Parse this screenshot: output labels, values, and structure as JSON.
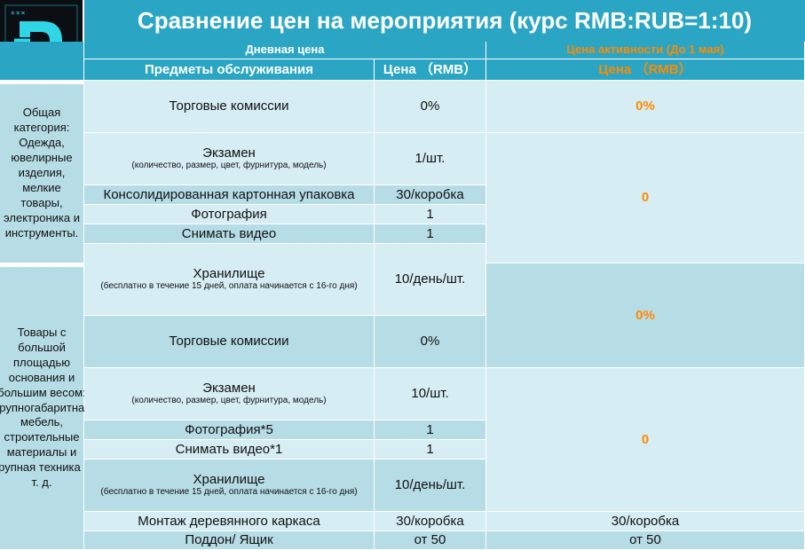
{
  "title": "Сравнение цен на мероприятия (курс RMB:RUB=1:10)",
  "logo": {
    "dots": "×××",
    "letter": "D",
    "accent": "#2fd6e6"
  },
  "colors": {
    "header": "#2aa6c4",
    "light": "#d6edf3",
    "dark": "#b6dce6",
    "orange": "#ff8a00"
  },
  "header": {
    "daily_price": "Дневная цена",
    "promo_price": "Цена активности (До 1 мая)",
    "items": "Предметы обслуживания",
    "price_rmb": "Цена （RMB）",
    "promo_price_rmb": "Цена （RMB）"
  },
  "section1": {
    "category": "Общая категория: Одежда, ювелирные изделия, мелкие товары, электроника и инструменты.",
    "rows": [
      {
        "item": "Торговые комиссии",
        "price": "0%"
      },
      {
        "item": "Экзамен",
        "note": "(количество, размер, цвет, фурнитура, модель)",
        "price": "1/шт."
      },
      {
        "item": "Консолидированная картонная упаковка",
        "price": "30/коробка"
      },
      {
        "item": "Фотография",
        "price": "1"
      },
      {
        "item": "Снимать видео",
        "price": "1"
      },
      {
        "item": "Хранилище",
        "note": "(бесплатно в течение 15 дней, оплата начинается с 16-го дня)",
        "price": "10/день/шт."
      }
    ],
    "promo_commission": "0%",
    "promo_rest": "0"
  },
  "section2": {
    "category": "Товары с большой площадью основания и большим весом: Крупногабаритная мебель, строительные материалы и крупная техника и т. д.",
    "rows": [
      {
        "item": "Торговые комиссии",
        "price": "0%"
      },
      {
        "item": "Экзамен",
        "note": "(количество, размер, цвет, фурнитура, модель)",
        "price": "10/шт."
      },
      {
        "item": "Фотография*5",
        "price": "1"
      },
      {
        "item": "Снимать видео*1",
        "price": "1"
      },
      {
        "item": "Хранилище",
        "note": "(бесплатно в течение 15 дней, оплата начинается с 16-го дня)",
        "price": "10/день/шт."
      },
      {
        "item": "Монтаж деревянного каркаса",
        "price": "30/коробка",
        "promo": "30/коробка"
      },
      {
        "item": "Поддон/ Ящик",
        "price": "от 50",
        "promo": "от 50"
      }
    ],
    "promo_commission": "0%",
    "promo_rest": "0"
  }
}
